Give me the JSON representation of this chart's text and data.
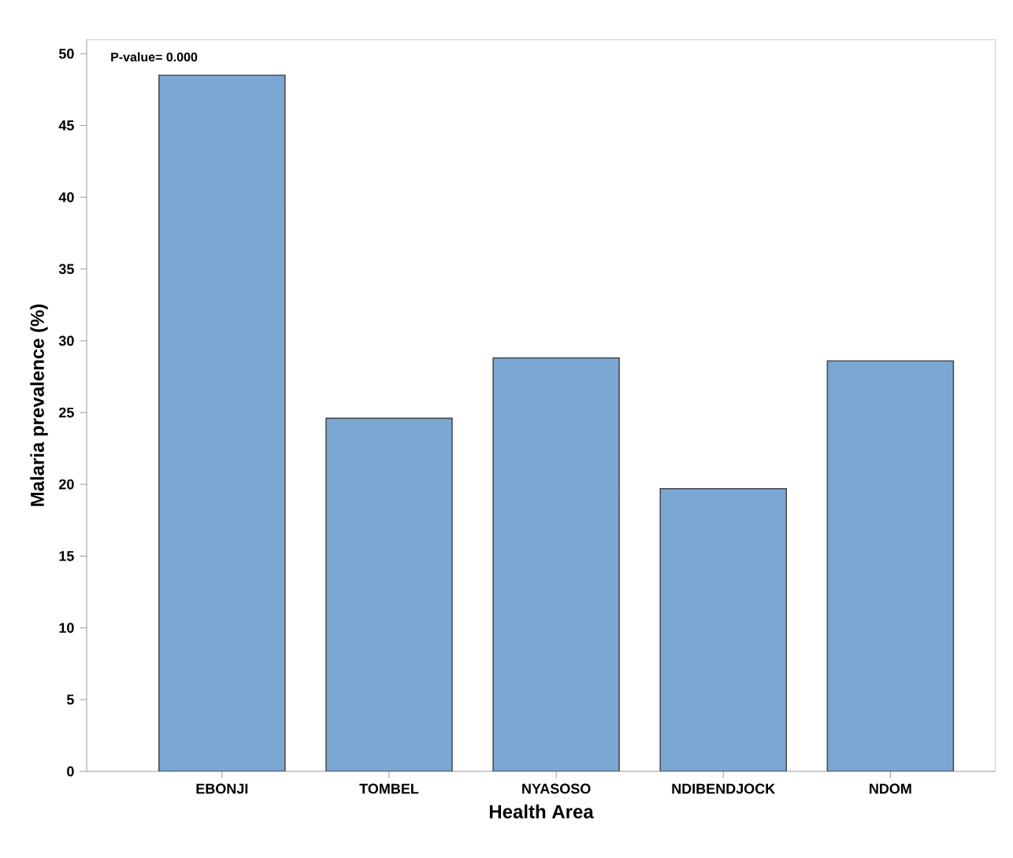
{
  "chart_data": {
    "type": "bar",
    "xlabel": "Health Area",
    "ylabel": "Malaria prevalence (%)",
    "categories": [
      "EBONJI",
      "TOMBEL",
      "NYASOSO",
      "NDIBENDJOCK",
      "NDOM"
    ],
    "values": [
      48.5,
      24.6,
      28.8,
      19.7,
      28.6
    ],
    "color": "#7ba7d4",
    "ylim": [
      0,
      51
    ],
    "yticks": [
      0,
      5,
      10,
      15,
      20,
      25,
      30,
      35,
      40,
      45,
      50
    ],
    "grid": false,
    "annotations": [
      "P-value= 0.000"
    ]
  }
}
